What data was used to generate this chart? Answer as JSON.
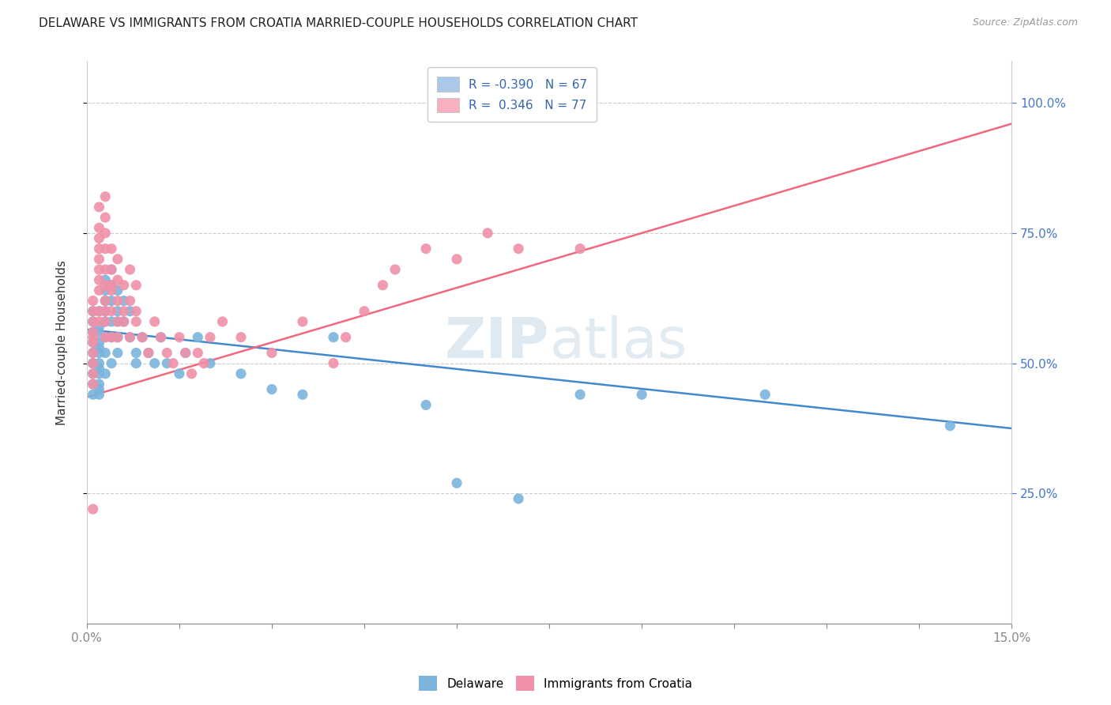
{
  "title": "DELAWARE VS IMMIGRANTS FROM CROATIA MARRIED-COUPLE HOUSEHOLDS CORRELATION CHART",
  "source": "Source: ZipAtlas.com",
  "ylabel": "Married-couple Households",
  "ytick_labels": [
    "25.0%",
    "50.0%",
    "75.0%",
    "100.0%"
  ],
  "ytick_values": [
    0.25,
    0.5,
    0.75,
    1.0
  ],
  "xmin": 0.0,
  "xmax": 0.15,
  "ymin": 0.0,
  "ymax": 1.08,
  "watermark": "ZIPatlas",
  "legend_entries": [
    {
      "label_r": "R = ",
      "label_rval": "-0.390",
      "label_n": "  N = 67",
      "color": "#aac8e8"
    },
    {
      "label_r": "R =  ",
      "label_rval": "0.346",
      "label_n": "  N = 77",
      "color": "#f8b0c0"
    }
  ],
  "delaware_color": "#7ab4dc",
  "croatia_color": "#f090a8",
  "delaware_line_color": "#4488cc",
  "croatia_line_color": "#f06880",
  "delaware_x": [
    0.001,
    0.001,
    0.001,
    0.001,
    0.001,
    0.001,
    0.001,
    0.001,
    0.001,
    0.001,
    0.002,
    0.002,
    0.002,
    0.002,
    0.002,
    0.002,
    0.002,
    0.002,
    0.002,
    0.002,
    0.002,
    0.002,
    0.003,
    0.003,
    0.003,
    0.003,
    0.003,
    0.003,
    0.003,
    0.003,
    0.004,
    0.004,
    0.004,
    0.004,
    0.004,
    0.004,
    0.005,
    0.005,
    0.005,
    0.005,
    0.005,
    0.006,
    0.006,
    0.007,
    0.007,
    0.008,
    0.008,
    0.009,
    0.01,
    0.011,
    0.012,
    0.013,
    0.015,
    0.016,
    0.018,
    0.02,
    0.025,
    0.03,
    0.035,
    0.04,
    0.055,
    0.06,
    0.07,
    0.08,
    0.09,
    0.11,
    0.14
  ],
  "delaware_y": [
    0.52,
    0.5,
    0.48,
    0.56,
    0.54,
    0.46,
    0.44,
    0.58,
    0.6,
    0.5,
    0.52,
    0.54,
    0.5,
    0.48,
    0.56,
    0.46,
    0.44,
    0.6,
    0.57,
    0.53,
    0.49,
    0.45,
    0.58,
    0.55,
    0.52,
    0.48,
    0.62,
    0.64,
    0.66,
    0.6,
    0.58,
    0.62,
    0.55,
    0.5,
    0.65,
    0.68,
    0.6,
    0.55,
    0.52,
    0.58,
    0.64,
    0.62,
    0.58,
    0.6,
    0.55,
    0.52,
    0.5,
    0.55,
    0.52,
    0.5,
    0.55,
    0.5,
    0.48,
    0.52,
    0.55,
    0.5,
    0.48,
    0.45,
    0.44,
    0.55,
    0.42,
    0.27,
    0.24,
    0.44,
    0.44,
    0.44,
    0.38
  ],
  "croatia_x": [
    0.001,
    0.001,
    0.001,
    0.001,
    0.001,
    0.001,
    0.001,
    0.001,
    0.001,
    0.001,
    0.002,
    0.002,
    0.002,
    0.002,
    0.002,
    0.002,
    0.002,
    0.002,
    0.002,
    0.002,
    0.003,
    0.003,
    0.003,
    0.003,
    0.003,
    0.003,
    0.003,
    0.003,
    0.003,
    0.003,
    0.004,
    0.004,
    0.004,
    0.004,
    0.004,
    0.004,
    0.005,
    0.005,
    0.005,
    0.005,
    0.005,
    0.006,
    0.006,
    0.006,
    0.007,
    0.007,
    0.007,
    0.008,
    0.008,
    0.008,
    0.009,
    0.01,
    0.011,
    0.012,
    0.013,
    0.014,
    0.015,
    0.016,
    0.017,
    0.018,
    0.019,
    0.02,
    0.022,
    0.025,
    0.03,
    0.035,
    0.04,
    0.042,
    0.045,
    0.048,
    0.05,
    0.055,
    0.06,
    0.065,
    0.07,
    0.08,
    0.001
  ],
  "croatia_y": [
    0.52,
    0.55,
    0.48,
    0.58,
    0.6,
    0.46,
    0.5,
    0.54,
    0.56,
    0.62,
    0.64,
    0.66,
    0.6,
    0.58,
    0.68,
    0.7,
    0.72,
    0.74,
    0.76,
    0.8,
    0.58,
    0.62,
    0.65,
    0.68,
    0.72,
    0.75,
    0.78,
    0.82,
    0.55,
    0.6,
    0.64,
    0.68,
    0.72,
    0.55,
    0.6,
    0.65,
    0.58,
    0.62,
    0.66,
    0.7,
    0.55,
    0.6,
    0.65,
    0.58,
    0.62,
    0.68,
    0.55,
    0.6,
    0.65,
    0.58,
    0.55,
    0.52,
    0.58,
    0.55,
    0.52,
    0.5,
    0.55,
    0.52,
    0.48,
    0.52,
    0.5,
    0.55,
    0.58,
    0.55,
    0.52,
    0.58,
    0.5,
    0.55,
    0.6,
    0.65,
    0.68,
    0.72,
    0.7,
    0.75,
    0.72,
    0.72,
    0.22
  ]
}
